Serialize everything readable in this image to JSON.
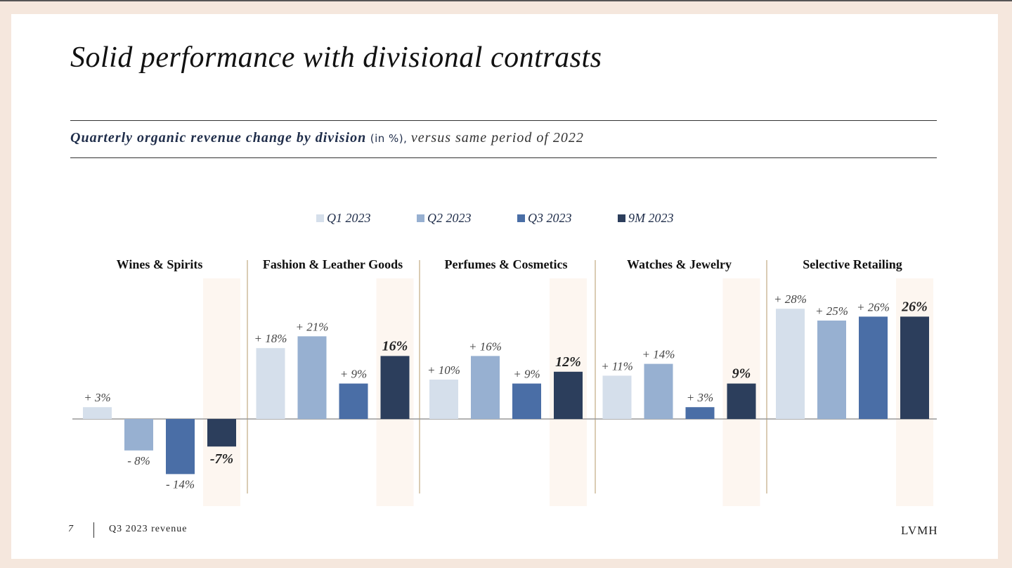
{
  "title": "Solid performance with divisional contrasts",
  "subtitle": {
    "bold": "Quarterly organic revenue change by division",
    "unit": "(in %),",
    "rest": "versus same period of 2022"
  },
  "footer": {
    "page": "7",
    "label": "Q3 2023 revenue",
    "brand": "LVMH"
  },
  "colors": {
    "Q1 2023": "#d5dfeb",
    "Q2 2023": "#97b0d1",
    "Q3 2023": "#4a6ea6",
    "9M 2023": "#2c3e5c",
    "highlight": "#fdf6f0",
    "divider": "#b59a6a"
  },
  "chart_data": {
    "type": "bar",
    "categories": [
      "Wines & Spirits",
      "Fashion & Leather Goods",
      "Perfumes & Cosmetics",
      "Watches & Jewelry",
      "Selective Retailing"
    ],
    "series": [
      {
        "name": "Q1 2023",
        "values": [
          3,
          18,
          10,
          11,
          28
        ],
        "labels": [
          "+ 3%",
          "+ 18%",
          "+ 10%",
          "+ 11%",
          "+ 28%"
        ]
      },
      {
        "name": "Q2 2023",
        "values": [
          -8,
          21,
          16,
          14,
          25
        ],
        "labels": [
          "- 8%",
          "+ 21%",
          "+ 16%",
          "+ 14%",
          "+ 25%"
        ]
      },
      {
        "name": "Q3 2023",
        "values": [
          -14,
          9,
          9,
          3,
          26
        ],
        "labels": [
          "- 14%",
          "+ 9%",
          "+ 9%",
          "+ 3%",
          "+ 26%"
        ]
      },
      {
        "name": "9M 2023",
        "values": [
          -7,
          16,
          12,
          9,
          26
        ],
        "labels": [
          "-7%",
          "16%",
          "12%",
          "9%",
          "26%"
        ]
      }
    ],
    "unit": "%",
    "legend": "top"
  }
}
